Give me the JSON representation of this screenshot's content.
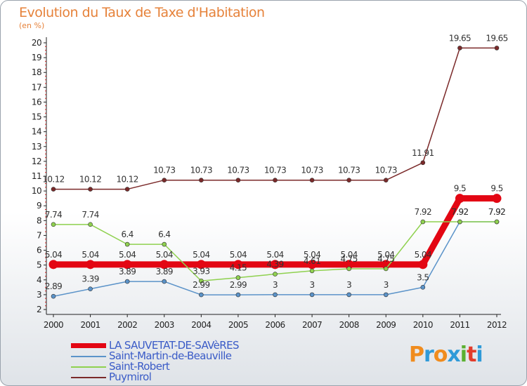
{
  "title": "Evolution du Taux de Taxe d'Habitation",
  "unit": "(en %)",
  "brand": {
    "text": "Proxiti",
    "colors": [
      "#f08c1e",
      "#2f9ad8",
      "#f08c1e",
      "#2f9ad8",
      "#5bb031",
      "#e23c2c",
      "#2f9ad8"
    ]
  },
  "chart_data": {
    "type": "line",
    "x": [
      "2000",
      "2001",
      "2002",
      "2003",
      "2004",
      "2005",
      "2006",
      "2007",
      "2008",
      "2009",
      "2010",
      "2011",
      "2012"
    ],
    "ylim": [
      2,
      20
    ],
    "yticks": [
      2,
      3,
      4,
      5,
      6,
      7,
      8,
      9,
      10,
      11,
      12,
      13,
      14,
      15,
      16,
      17,
      18,
      19,
      20
    ],
    "grid": false,
    "legend_position": "bottom-left",
    "series": [
      {
        "name": "LA SAUVETAT-DE-SAVèRES",
        "color": "#e30613",
        "width": 9,
        "values": [
          5.04,
          5.04,
          5.04,
          5.04,
          5.04,
          5.04,
          5.04,
          5.04,
          5.04,
          5.04,
          5.04,
          9.5,
          9.5
        ],
        "labels": [
          "5.04",
          "5.04",
          "5.04",
          "5.04",
          "5.04",
          "5.04",
          "5.04",
          "5.04",
          "5.04",
          "5.04",
          "5.04",
          "9.5",
          "9.5"
        ]
      },
      {
        "name": "Saint-Martin-de-Beauville",
        "color": "#5b93c9",
        "width": 1.5,
        "values": [
          2.89,
          3.39,
          3.89,
          3.89,
          2.99,
          2.99,
          3,
          3,
          3,
          3,
          3.5,
          7.92,
          7.92
        ],
        "labels": [
          "2.89",
          "3.39",
          "3.89",
          "3.89",
          "2.99",
          "2.99",
          "3",
          "3",
          "3",
          "3",
          "3.5",
          "7.92",
          "7.92"
        ]
      },
      {
        "name": "Saint-Robert",
        "color": "#8fd14f",
        "width": 1.5,
        "values": [
          7.74,
          7.74,
          6.4,
          6.4,
          3.93,
          4.15,
          4.39,
          4.61,
          4.75,
          4.75,
          7.92,
          7.92,
          7.92
        ],
        "labels": [
          "7.74",
          "7.74",
          "6.4",
          "6.4",
          "3.93",
          "4.15",
          "4.39",
          "4.61",
          "4.75",
          "4.75",
          "7.92",
          "7.92",
          "7.92"
        ]
      },
      {
        "name": "Puymirol",
        "color": "#7b2a2a",
        "width": 1.5,
        "values": [
          10.12,
          10.12,
          10.12,
          10.73,
          10.73,
          10.73,
          10.73,
          10.73,
          10.73,
          10.73,
          11.91,
          19.65,
          19.65
        ],
        "labels": [
          "10.12",
          "10.12",
          "10.12",
          "10.73",
          "10.73",
          "10.73",
          "10.73",
          "10.73",
          "10.73",
          "10.73",
          "11.91",
          "19.65",
          "19.65"
        ]
      }
    ]
  }
}
